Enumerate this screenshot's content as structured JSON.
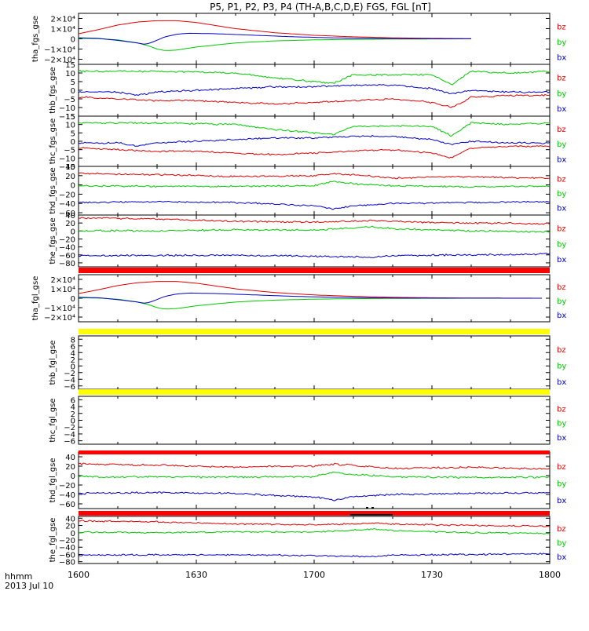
{
  "title": "P5, P1, P2, P3, P4 (TH-A,B,C,D,E) FGS, FGL [nT]",
  "colors": {
    "bz": "#e00000",
    "by": "#00c800",
    "bx": "#0000c8",
    "red_bar": "#ff0000",
    "yellow_bar": "#ffff00",
    "axis": "#000000"
  },
  "x_axis": {
    "ticks": [
      "1600",
      "1630",
      "1700",
      "1730",
      "1800"
    ],
    "footer_label_1": "hhmm",
    "footer_label_2": "2013 Jul 10"
  },
  "chart_data": {
    "type": "line",
    "x_range_minutes": [
      0,
      120
    ],
    "panels": [
      {
        "id": "tha_fgs",
        "ylabel": "tha_fgs_gse",
        "ylim": [
          -25000,
          25000
        ],
        "ytick_labels": [
          {
            "v": 20000,
            "t": "2×10⁴"
          },
          {
            "v": 10000,
            "t": "1×10⁴"
          },
          {
            "v": 0,
            "t": "0"
          },
          {
            "v": -10000,
            "t": "−1×10⁴"
          },
          {
            "v": -20000,
            "t": "−2×10⁴"
          }
        ],
        "legend": [
          "bz",
          "by",
          "bx"
        ],
        "kind": "tha",
        "ends_at": 100
      },
      {
        "id": "thb_fgs",
        "ylabel": "thb_fgs_gse",
        "ylim": [
          -15,
          15
        ],
        "ytick_labels": [
          {
            "v": 15,
            "t": "15"
          },
          {
            "v": 10,
            "t": "10"
          },
          {
            "v": 5,
            "t": "5"
          },
          {
            "v": 0,
            "t": "0"
          },
          {
            "v": -5,
            "t": "−5"
          },
          {
            "v": -10,
            "t": "−10"
          },
          {
            "v": -15,
            "t": "−15"
          }
        ],
        "legend": [
          "bz",
          "by",
          "bx"
        ],
        "kind": "thbc"
      },
      {
        "id": "thc_fgs",
        "ylabel": "thc_fgs_gse",
        "ylim": [
          -15,
          15
        ],
        "ytick_labels": [
          {
            "v": 15,
            "t": "15"
          },
          {
            "v": 10,
            "t": "10"
          },
          {
            "v": 5,
            "t": "5"
          },
          {
            "v": 0,
            "t": "0"
          },
          {
            "v": -5,
            "t": "−5"
          },
          {
            "v": -10,
            "t": "−10"
          },
          {
            "v": -15,
            "t": "−15"
          }
        ],
        "legend": [
          "bz",
          "by",
          "bx"
        ],
        "kind": "thbc"
      },
      {
        "id": "thd_fgs",
        "ylabel": "thd_fgs_gse",
        "ylim": [
          -65,
          40
        ],
        "ytick_labels": [
          {
            "v": 40,
            "t": "40"
          },
          {
            "v": 20,
            "t": "20"
          },
          {
            "v": 0,
            "t": "0"
          },
          {
            "v": -20,
            "t": "−20"
          },
          {
            "v": -40,
            "t": "−40"
          },
          {
            "v": -60,
            "t": "−60"
          }
        ],
        "legend": [
          "bz",
          "by",
          "bx"
        ],
        "kind": "thde"
      },
      {
        "id": "the_fgs",
        "ylabel": "the_fgs_gse",
        "ylim": [
          -90,
          40
        ],
        "ytick_labels": [
          {
            "v": 40,
            "t": "40"
          },
          {
            "v": 20,
            "t": "20"
          },
          {
            "v": 0,
            "t": "0"
          },
          {
            "v": -20,
            "t": "−20"
          },
          {
            "v": -40,
            "t": "−40"
          },
          {
            "v": -60,
            "t": "−60"
          },
          {
            "v": -80,
            "t": "−80"
          }
        ],
        "legend": [
          "bz",
          "by",
          "bx"
        ],
        "kind": "thde2"
      },
      {
        "id": "tha_fgl",
        "ylabel": "tha_fgl_gse",
        "ylim": [
          -25000,
          25000
        ],
        "ytick_labels": [
          {
            "v": 20000,
            "t": "2×10⁴"
          },
          {
            "v": 10000,
            "t": "1×10⁴"
          },
          {
            "v": 0,
            "t": "0"
          },
          {
            "v": -10000,
            "t": "−1×10⁴"
          },
          {
            "v": -20000,
            "t": "−2×10⁴"
          }
        ],
        "legend": [
          "bz",
          "by",
          "bx"
        ],
        "kind": "tha",
        "ends_at": 118
      },
      {
        "id": "thb_fgl",
        "ylabel": "thb_fgl_gse",
        "ylim": [
          -7,
          9
        ],
        "ytick_labels": [
          {
            "v": 8,
            "t": "8"
          },
          {
            "v": 6,
            "t": "6"
          },
          {
            "v": 4,
            "t": "4"
          },
          {
            "v": 2,
            "t": "2"
          },
          {
            "v": 0,
            "t": "0"
          },
          {
            "v": -2,
            "t": "−2"
          },
          {
            "v": -4,
            "t": "−4"
          },
          {
            "v": -6,
            "t": "−6"
          }
        ],
        "legend": [
          "bz",
          "by",
          "bx"
        ],
        "kind": "empty"
      },
      {
        "id": "thc_fgl",
        "ylabel": "thc_fgl_gse",
        "ylim": [
          -7,
          7
        ],
        "ytick_labels": [
          {
            "v": 6,
            "t": "6"
          },
          {
            "v": 4,
            "t": "4"
          },
          {
            "v": 2,
            "t": "2"
          },
          {
            "v": 0,
            "t": "0"
          },
          {
            "v": -2,
            "t": "−2"
          },
          {
            "v": -4,
            "t": "−4"
          },
          {
            "v": -6,
            "t": "−6"
          }
        ],
        "legend": [
          "bz",
          "by",
          "bx"
        ],
        "kind": "empty"
      },
      {
        "id": "thd_fgl",
        "ylabel": "thd_fgl_gse",
        "ylim": [
          -70,
          50
        ],
        "ytick_labels": [
          {
            "v": 40,
            "t": "40"
          },
          {
            "v": 20,
            "t": "20"
          },
          {
            "v": 0,
            "t": "0"
          },
          {
            "v": -20,
            "t": "−20"
          },
          {
            "v": -40,
            "t": "−40"
          },
          {
            "v": -60,
            "t": "−60"
          }
        ],
        "legend": [
          "bz",
          "by",
          "bx"
        ],
        "kind": "thde"
      },
      {
        "id": "the_fgl",
        "ylabel": "the_fgl_gse",
        "ylim": [
          -85,
          45
        ],
        "ytick_labels": [
          {
            "v": 40,
            "t": "40"
          },
          {
            "v": 20,
            "t": "20"
          },
          {
            "v": 0,
            "t": "0"
          },
          {
            "v": -20,
            "t": "−20"
          },
          {
            "v": -40,
            "t": "−40"
          },
          {
            "v": -60,
            "t": "−60"
          },
          {
            "v": -80,
            "t": "−80"
          }
        ],
        "legend": [
          "bz",
          "by",
          "bx"
        ],
        "kind": "thde2"
      }
    ],
    "bars": [
      {
        "after_panel": "the_fgs",
        "color": "red"
      },
      {
        "after_panel": "tha_fgl",
        "color": "yellow"
      },
      {
        "after_panel": "thb_fgl",
        "color": "yellow"
      },
      {
        "after_panel": "thc_fgl",
        "color": "red"
      },
      {
        "after_panel": "thd_fgl",
        "color": "red"
      }
    ],
    "series_shapes": {
      "tha": {
        "bz": [
          [
            0,
            5000
          ],
          [
            5,
            9000
          ],
          [
            10,
            13500
          ],
          [
            15,
            16500
          ],
          [
            20,
            17800
          ],
          [
            25,
            17800
          ],
          [
            30,
            16000
          ],
          [
            35,
            13000
          ],
          [
            40,
            10000
          ],
          [
            50,
            6000
          ],
          [
            60,
            3500
          ],
          [
            70,
            2000
          ],
          [
            80,
            1000
          ],
          [
            90,
            500
          ],
          [
            100,
            200
          ],
          [
            110,
            100
          ],
          [
            120,
            0
          ]
        ],
        "by": [
          [
            0,
            500
          ],
          [
            5,
            200
          ],
          [
            10,
            -1000
          ],
          [
            15,
            -4000
          ],
          [
            18,
            -7000
          ],
          [
            20,
            -10000
          ],
          [
            22,
            -11500
          ],
          [
            25,
            -11000
          ],
          [
            30,
            -8000
          ],
          [
            40,
            -4000
          ],
          [
            50,
            -2000
          ],
          [
            60,
            -1000
          ],
          [
            70,
            -500
          ],
          [
            80,
            -200
          ],
          [
            90,
            -100
          ],
          [
            100,
            0
          ],
          [
            120,
            0
          ]
        ],
        "bx": [
          [
            0,
            1000
          ],
          [
            5,
            500
          ],
          [
            10,
            -1500
          ],
          [
            15,
            -4000
          ],
          [
            17,
            -5500
          ],
          [
            19,
            -3000
          ],
          [
            22,
            2000
          ],
          [
            25,
            4500
          ],
          [
            28,
            5500
          ],
          [
            35,
            5000
          ],
          [
            45,
            3500
          ],
          [
            55,
            2000
          ],
          [
            65,
            1000
          ],
          [
            75,
            400
          ],
          [
            90,
            100
          ],
          [
            120,
            0
          ]
        ]
      },
      "thbc": {
        "bz": [
          [
            0,
            -4
          ],
          [
            10,
            -5
          ],
          [
            20,
            -6
          ],
          [
            30,
            -6
          ],
          [
            40,
            -7
          ],
          [
            50,
            -8
          ],
          [
            60,
            -7
          ],
          [
            70,
            -6
          ],
          [
            80,
            -5
          ],
          [
            90,
            -7
          ],
          [
            95,
            -10
          ],
          [
            100,
            -4
          ],
          [
            110,
            -3
          ],
          [
            120,
            -3
          ]
        ],
        "by": [
          [
            0,
            11
          ],
          [
            20,
            11
          ],
          [
            40,
            10
          ],
          [
            50,
            7
          ],
          [
            60,
            5
          ],
          [
            65,
            4
          ],
          [
            70,
            9
          ],
          [
            80,
            9
          ],
          [
            90,
            9
          ],
          [
            95,
            3
          ],
          [
            100,
            11
          ],
          [
            110,
            10
          ],
          [
            120,
            11
          ]
        ],
        "bx": [
          [
            0,
            -1
          ],
          [
            10,
            -1
          ],
          [
            15,
            -3
          ],
          [
            20,
            -1
          ],
          [
            30,
            0
          ],
          [
            40,
            1
          ],
          [
            50,
            2
          ],
          [
            60,
            2
          ],
          [
            70,
            3
          ],
          [
            80,
            3
          ],
          [
            90,
            1
          ],
          [
            95,
            -2
          ],
          [
            100,
            0
          ],
          [
            110,
            -1
          ],
          [
            120,
            -1
          ]
        ]
      },
      "thde": {
        "bz": [
          [
            0,
            25
          ],
          [
            20,
            22
          ],
          [
            40,
            18
          ],
          [
            60,
            20
          ],
          [
            65,
            24
          ],
          [
            70,
            22
          ],
          [
            80,
            15
          ],
          [
            100,
            18
          ],
          [
            120,
            14
          ]
        ],
        "by": [
          [
            0,
            -2
          ],
          [
            20,
            -3
          ],
          [
            40,
            -3
          ],
          [
            60,
            -2
          ],
          [
            65,
            8
          ],
          [
            70,
            2
          ],
          [
            80,
            -2
          ],
          [
            100,
            -4
          ],
          [
            120,
            -3
          ]
        ],
        "bx": [
          [
            0,
            -38
          ],
          [
            20,
            -36
          ],
          [
            40,
            -38
          ],
          [
            60,
            -45
          ],
          [
            65,
            -52
          ],
          [
            70,
            -45
          ],
          [
            80,
            -40
          ],
          [
            100,
            -38
          ],
          [
            120,
            -36
          ]
        ]
      },
      "thde2": {
        "bz": [
          [
            0,
            33
          ],
          [
            20,
            30
          ],
          [
            40,
            24
          ],
          [
            60,
            22
          ],
          [
            75,
            26
          ],
          [
            80,
            24
          ],
          [
            100,
            20
          ],
          [
            120,
            18
          ]
        ],
        "by": [
          [
            0,
            1
          ],
          [
            20,
            0
          ],
          [
            40,
            3
          ],
          [
            60,
            2
          ],
          [
            75,
            10
          ],
          [
            80,
            6
          ],
          [
            100,
            0
          ],
          [
            120,
            -2
          ]
        ],
        "bx": [
          [
            0,
            -62
          ],
          [
            20,
            -61
          ],
          [
            40,
            -61
          ],
          [
            60,
            -63
          ],
          [
            75,
            -66
          ],
          [
            80,
            -62
          ],
          [
            100,
            -60
          ],
          [
            120,
            -58
          ]
        ]
      }
    }
  }
}
